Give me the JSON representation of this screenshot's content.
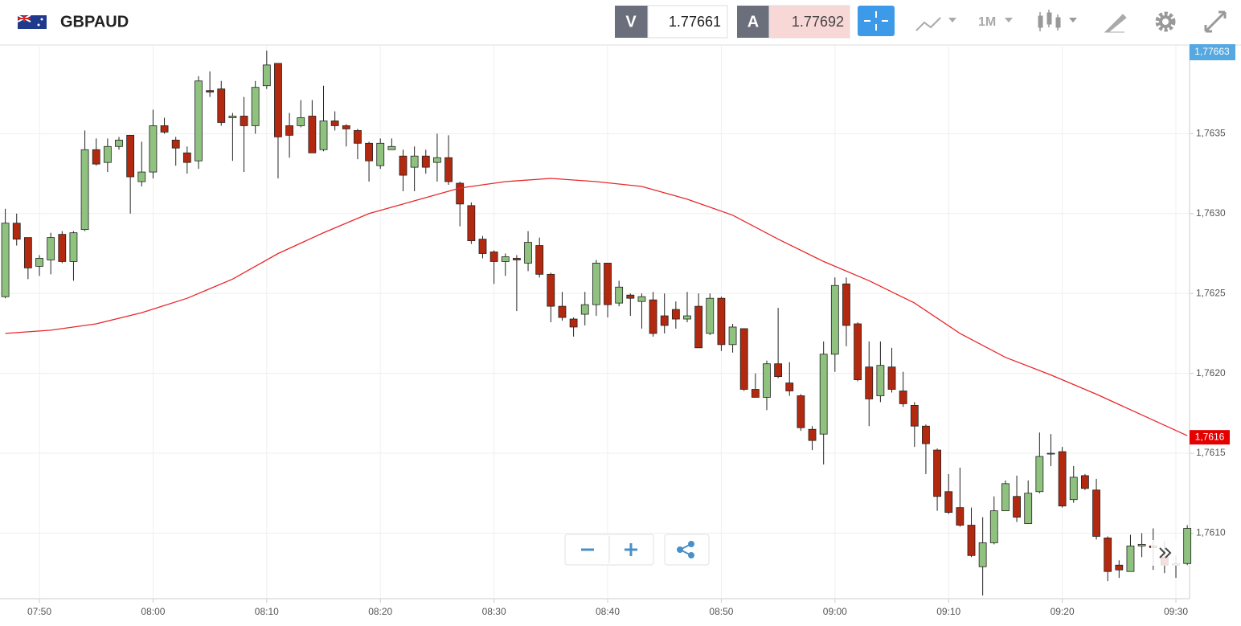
{
  "header": {
    "symbol": "GBPAUD",
    "bid_label": "V",
    "bid": "1.77661",
    "ask_label": "A",
    "ask": "1.77692",
    "timeframe": "1M",
    "top_price_tag": "1,77663"
  },
  "chart_data": {
    "type": "candlestick",
    "categories": [
      "07:47",
      "07:48",
      "07:49",
      "07:50",
      "07:51",
      "07:52",
      "07:53",
      "07:54",
      "07:55",
      "07:56",
      "07:57",
      "07:58",
      "07:59",
      "08:00",
      "08:01",
      "08:02",
      "08:03",
      "08:04",
      "08:05",
      "08:06",
      "08:07",
      "08:08",
      "08:09",
      "08:10",
      "08:11",
      "08:12",
      "08:13",
      "08:14",
      "08:15",
      "08:16",
      "08:17",
      "08:18",
      "08:19",
      "08:20",
      "08:21",
      "08:22",
      "08:23",
      "08:24",
      "08:25",
      "08:26",
      "08:27",
      "08:28",
      "08:29",
      "08:30",
      "08:31",
      "08:32",
      "08:33",
      "08:34",
      "08:35",
      "08:36",
      "08:37",
      "08:38",
      "08:39",
      "08:40",
      "08:41",
      "08:42",
      "08:43",
      "08:44",
      "08:45",
      "08:46",
      "08:47",
      "08:48",
      "08:49",
      "08:50",
      "08:51",
      "08:52",
      "08:53",
      "08:54",
      "08:55",
      "08:56",
      "08:57",
      "08:58",
      "08:59",
      "09:00",
      "09:01",
      "09:02",
      "09:03",
      "09:04",
      "09:05",
      "09:06",
      "09:07",
      "09:08",
      "09:09",
      "09:10",
      "09:11",
      "09:12",
      "09:13",
      "09:14",
      "09:15",
      "09:16",
      "09:17",
      "09:18",
      "09:19",
      "09:20",
      "09:21",
      "09:22",
      "09:23",
      "09:24",
      "09:25",
      "09:26",
      "09:27",
      "09:28",
      "09:29",
      "09:30",
      "09:31"
    ],
    "open": [
      1.76248,
      1.76294,
      1.76285,
      1.76267,
      1.76271,
      1.76287,
      1.7627,
      1.7629,
      1.7634,
      1.76332,
      1.76342,
      1.76349,
      1.7632,
      1.76326,
      1.76355,
      1.76346,
      1.76338,
      1.76333,
      1.76377,
      1.76378,
      1.7636,
      1.76361,
      1.76355,
      1.7638,
      1.76394,
      1.76355,
      1.76355,
      1.76361,
      1.7634,
      1.76358,
      1.76355,
      1.76352,
      1.76344,
      1.7633,
      1.7634,
      1.76336,
      1.76329,
      1.76336,
      1.76332,
      1.76335,
      1.76319,
      1.76305,
      1.76284,
      1.76276,
      1.7627,
      1.76272,
      1.76269,
      1.7628,
      1.76262,
      1.76242,
      1.76234,
      1.76237,
      1.76243,
      1.76269,
      1.76244,
      1.76249,
      1.76245,
      1.76246,
      1.76236,
      1.7624,
      1.76234,
      1.76242,
      1.76225,
      1.76247,
      1.76218,
      1.76228,
      1.7619,
      1.76185,
      1.76206,
      1.76194,
      1.76186,
      1.76165,
      1.76162,
      1.76212,
      1.76256,
      1.76231,
      1.76204,
      1.76186,
      1.76204,
      1.76189,
      1.7618,
      1.76167,
      1.76152,
      1.76126,
      1.76116,
      1.76105,
      1.76079,
      1.76094,
      1.76114,
      1.76123,
      1.76106,
      1.76126,
      1.7615,
      1.76151,
      1.76121,
      1.76136,
      1.76127,
      1.76097,
      1.7608,
      1.76076,
      1.76092,
      1.76092,
      1.76085,
      1.7608,
      1.76081
    ],
    "high": [
      1.76303,
      1.763,
      1.76285,
      1.76274,
      1.76288,
      1.76289,
      1.76289,
      1.76352,
      1.76347,
      1.76347,
      1.76348,
      1.76349,
      1.76345,
      1.76365,
      1.7636,
      1.76348,
      1.76342,
      1.76386,
      1.76389,
      1.76383,
      1.76363,
      1.76373,
      1.76383,
      1.76402,
      1.76394,
      1.76363,
      1.76371,
      1.76371,
      1.7638,
      1.76364,
      1.76356,
      1.76353,
      1.76345,
      1.76347,
      1.76347,
      1.7634,
      1.76342,
      1.7634,
      1.7635,
      1.76349,
      1.7632,
      1.76307,
      1.76286,
      1.76277,
      1.76275,
      1.76274,
      1.76289,
      1.76285,
      1.76263,
      1.76251,
      1.76235,
      1.76251,
      1.76271,
      1.76269,
      1.76258,
      1.7625,
      1.7625,
      1.76251,
      1.7625,
      1.76245,
      1.76251,
      1.7625,
      1.7625,
      1.76248,
      1.76231,
      1.76228,
      1.762,
      1.76208,
      1.76241,
      1.76207,
      1.76187,
      1.76167,
      1.7622,
      1.7626,
      1.7626,
      1.76232,
      1.7622,
      1.7622,
      1.76216,
      1.76201,
      1.76182,
      1.76168,
      1.76153,
      1.76137,
      1.76141,
      1.76116,
      1.7611,
      1.76123,
      1.76133,
      1.76136,
      1.76133,
      1.76163,
      1.76162,
      1.76154,
      1.76142,
      1.76137,
      1.76134,
      1.76098,
      1.76083,
      1.76099,
      1.761,
      1.76103,
      1.76095,
      1.76086,
      1.76105
    ],
    "low": [
      1.76247,
      1.7628,
      1.76259,
      1.76261,
      1.76262,
      1.76269,
      1.76258,
      1.76289,
      1.7633,
      1.76326,
      1.7634,
      1.763,
      1.76317,
      1.76322,
      1.7635,
      1.7633,
      1.76325,
      1.76328,
      1.76373,
      1.76355,
      1.76333,
      1.76326,
      1.7635,
      1.76378,
      1.76322,
      1.76335,
      1.76354,
      1.76338,
      1.76339,
      1.76352,
      1.76342,
      1.76334,
      1.7632,
      1.76328,
      1.7634,
      1.76314,
      1.76314,
      1.76325,
      1.7632,
      1.76318,
      1.76292,
      1.76281,
      1.76272,
      1.76256,
      1.76261,
      1.76239,
      1.76264,
      1.7626,
      1.76232,
      1.76233,
      1.76223,
      1.7623,
      1.76236,
      1.76235,
      1.76242,
      1.76236,
      1.76228,
      1.76223,
      1.76225,
      1.76228,
      1.76232,
      1.76216,
      1.76224,
      1.76214,
      1.76213,
      1.76189,
      1.76185,
      1.76177,
      1.76197,
      1.76186,
      1.76164,
      1.76152,
      1.76143,
      1.76201,
      1.76217,
      1.76195,
      1.76167,
      1.76182,
      1.76188,
      1.76179,
      1.76154,
      1.76137,
      1.76114,
      1.76112,
      1.76104,
      1.76085,
      1.76061,
      1.76093,
      1.76114,
      1.76107,
      1.76106,
      1.76125,
      1.76142,
      1.76116,
      1.76119,
      1.76127,
      1.76096,
      1.7607,
      1.76072,
      1.76076,
      1.76085,
      1.76077,
      1.76075,
      1.76072,
      1.7608
    ],
    "close": [
      1.76294,
      1.76284,
      1.76266,
      1.76272,
      1.76285,
      1.7627,
      1.76288,
      1.7634,
      1.76331,
      1.76342,
      1.76346,
      1.76323,
      1.76326,
      1.76355,
      1.76351,
      1.76341,
      1.76332,
      1.76383,
      1.76376,
      1.76357,
      1.76361,
      1.76355,
      1.76379,
      1.76393,
      1.76348,
      1.76349,
      1.7636,
      1.76338,
      1.76358,
      1.76355,
      1.76353,
      1.76344,
      1.76333,
      1.76344,
      1.76342,
      1.76324,
      1.76336,
      1.76329,
      1.76335,
      1.7632,
      1.76306,
      1.76283,
      1.76275,
      1.7627,
      1.76273,
      1.76271,
      1.76282,
      1.76262,
      1.76242,
      1.76235,
      1.76229,
      1.76243,
      1.76269,
      1.76243,
      1.76254,
      1.76247,
      1.76248,
      1.76225,
      1.7623,
      1.76234,
      1.76236,
      1.76216,
      1.76247,
      1.76218,
      1.76229,
      1.7619,
      1.76185,
      1.76206,
      1.76198,
      1.76189,
      1.76166,
      1.76158,
      1.76212,
      1.76255,
      1.7623,
      1.76196,
      1.76184,
      1.76205,
      1.7619,
      1.76181,
      1.76167,
      1.76156,
      1.76123,
      1.76113,
      1.76105,
      1.76086,
      1.76094,
      1.76114,
      1.76131,
      1.7611,
      1.76125,
      1.76148,
      1.7615,
      1.76117,
      1.76135,
      1.76128,
      1.76098,
      1.76076,
      1.76077,
      1.76092,
      1.76093,
      1.76091,
      1.7608,
      1.76081,
      1.76103
    ],
    "up_color": "#8fc27f",
    "down_color": "#b3290f",
    "ma": {
      "color": "#e8282b",
      "x": [
        "07:47",
        "07:51",
        "07:55",
        "07:59",
        "08:03",
        "08:07",
        "08:11",
        "08:15",
        "08:19",
        "08:23",
        "08:27",
        "08:31",
        "08:35",
        "08:39",
        "08:43",
        "08:47",
        "08:51",
        "08:55",
        "08:59",
        "09:03",
        "09:07",
        "09:11",
        "09:15",
        "09:19",
        "09:23",
        "09:27",
        "09:31"
      ],
      "values": [
        1.76225,
        1.76227,
        1.76231,
        1.76238,
        1.76247,
        1.76259,
        1.76275,
        1.76288,
        1.763,
        1.76308,
        1.76316,
        1.7632,
        1.76322,
        1.7632,
        1.76317,
        1.76309,
        1.76299,
        1.76284,
        1.7627,
        1.76258,
        1.76244,
        1.76225,
        1.7621,
        1.76199,
        1.76187,
        1.76174,
        1.76161
      ]
    },
    "ma_tag": {
      "value": 1.7616,
      "label": "1,7616"
    },
    "ylim": [
      1.76059,
      1.76405
    ],
    "yticks": [
      {
        "value": 1.7635,
        "label": "1,7635"
      },
      {
        "value": 1.763,
        "label": "1,7630"
      },
      {
        "value": 1.7625,
        "label": "1,7625"
      },
      {
        "value": 1.762,
        "label": "1,7620"
      },
      {
        "value": 1.7615,
        "label": "1,7615"
      },
      {
        "value": 1.761,
        "label": "1,7610"
      }
    ],
    "xticks": [
      "07:50",
      "08:00",
      "08:10",
      "08:20",
      "08:30",
      "08:40",
      "08:50",
      "09:00",
      "09:10",
      "09:20",
      "09:30"
    ],
    "grid": true
  }
}
